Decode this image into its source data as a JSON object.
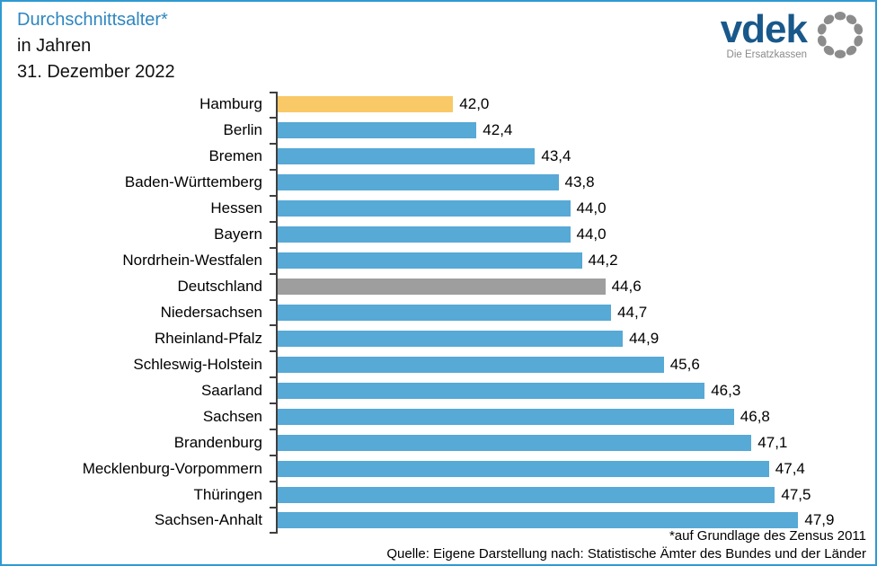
{
  "header": {
    "title": "Durchschnittsalter*",
    "subtitle1": "in Jahren",
    "subtitle2": "31. Dezember 2022"
  },
  "logo": {
    "brand": "vdek",
    "tagline": "Die Ersatzkassen"
  },
  "footer": {
    "note": "*auf Grundlage des Zensus 2011",
    "source": "Quelle: Eigene Darstellung nach: Statistische Ämter des Bundes und der Länder"
  },
  "colors": {
    "bar_default": "#57A9D6",
    "bar_highlight": "#F9C968",
    "bar_average": "#9E9E9E",
    "title_blue": "#2E86C0",
    "border_blue": "#2E9AD2",
    "axis": "#3F3F3F",
    "logo_blue": "#19588A",
    "logo_gray": "#8C8C8C"
  },
  "chart_data": {
    "type": "bar",
    "orientation": "horizontal",
    "title": "Durchschnittsalter* in Jahren, 31. Dezember 2022",
    "categories": [
      "Hamburg",
      "Berlin",
      "Bremen",
      "Baden-Württemberg",
      "Hessen",
      "Bayern",
      "Nordrhein-Westfalen",
      "Deutschland",
      "Niedersachsen",
      "Rheinland-Pfalz",
      "Schleswig-Holstein",
      "Saarland",
      "Sachsen",
      "Brandenburg",
      "Mecklenburg-Vorpommern",
      "Thüringen",
      "Sachsen-Anhalt"
    ],
    "values": [
      42.0,
      42.4,
      43.4,
      43.8,
      44.0,
      44.0,
      44.2,
      44.6,
      44.7,
      44.9,
      45.6,
      46.3,
      46.8,
      47.1,
      47.4,
      47.5,
      47.9
    ],
    "value_labels": [
      "42,0",
      "42,4",
      "43,4",
      "43,8",
      "44,0",
      "44,0",
      "44,2",
      "44,6",
      "44,7",
      "44,9",
      "45,6",
      "46,3",
      "46,8",
      "47,1",
      "47,4",
      "47,5",
      "47,9"
    ],
    "highlight_category": "Hamburg",
    "average_category": "Deutschland",
    "xlim": [
      39,
      49
    ],
    "grid": false,
    "legend": false
  }
}
